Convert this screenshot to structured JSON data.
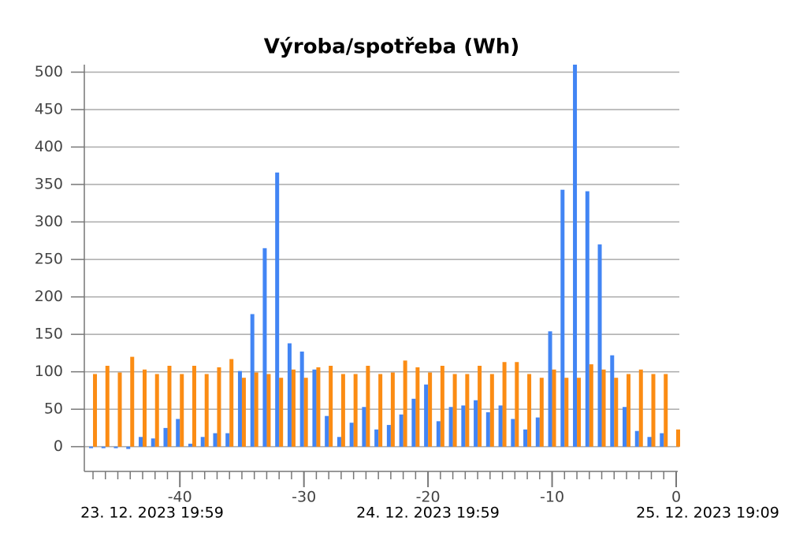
{
  "chart_data": {
    "type": "bar",
    "title": "Výroba/spotřeba (Wh)",
    "x": [
      -47,
      -46,
      -45,
      -44,
      -43,
      -42,
      -41,
      -40,
      -39,
      -38,
      -37,
      -36,
      -35,
      -34,
      -33,
      -32,
      -31,
      -30,
      -29,
      -28,
      -27,
      -26,
      -25,
      -24,
      -23,
      -22,
      -21,
      -20,
      -19,
      -18,
      -17,
      -16,
      -15,
      -14,
      -13,
      -12,
      -11,
      -10,
      -9,
      -8,
      -7,
      -6,
      -5,
      -4,
      -3,
      -2,
      -1,
      0
    ],
    "series": [
      {
        "color": "#4285f4",
        "values": [
          -2,
          -2,
          -2,
          -3,
          13,
          11,
          25,
          37,
          4,
          13,
          18,
          18,
          101,
          177,
          265,
          366,
          138,
          127,
          103,
          41,
          13,
          32,
          53,
          23,
          29,
          43,
          64,
          83,
          34,
          53,
          55,
          62,
          46,
          55,
          37,
          23,
          39,
          154,
          343,
          510,
          341,
          270,
          122,
          53,
          21,
          13,
          18,
          0
        ]
      },
      {
        "color": "#fb8c14",
        "values": [
          97,
          108,
          99,
          120,
          103,
          97,
          108,
          97,
          108,
          97,
          106,
          117,
          92,
          99,
          97,
          92,
          103,
          92,
          106,
          108,
          97,
          97,
          108,
          97,
          99,
          115,
          106,
          99,
          108,
          97,
          97,
          108,
          97,
          113,
          113,
          97,
          92,
          103,
          92,
          92,
          110,
          103,
          92,
          97,
          103,
          97,
          97,
          23
        ]
      }
    ],
    "xlim": [
      -47.7,
      0
    ],
    "xticks": [
      -40,
      -30,
      -20,
      -10,
      0
    ],
    "ylim": [
      -33,
      510
    ],
    "yticks": [
      0,
      50,
      100,
      150,
      200,
      250,
      300,
      350,
      400,
      450,
      500
    ],
    "grid": true,
    "date_labels": [
      "23. 12. 2023 19:59",
      "24. 12. 2023 19:59",
      "25. 12. 2023 19:09"
    ]
  }
}
